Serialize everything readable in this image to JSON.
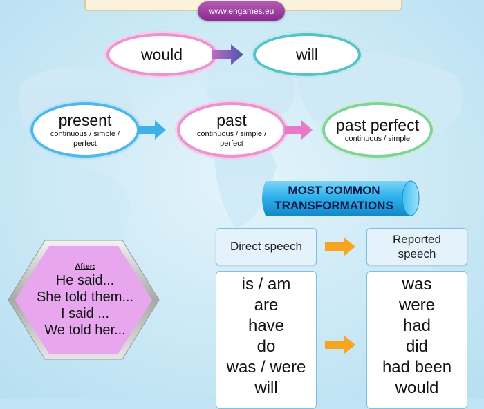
{
  "header": {
    "site": "www.engames.eu"
  },
  "row1": {
    "from": "would",
    "to": "will"
  },
  "row2": {
    "present": {
      "label": "present",
      "sub": "continuous / simple / perfect"
    },
    "past": {
      "label": "past",
      "sub": "continuous / simple / perfect"
    },
    "past_perfect": {
      "label": "past perfect",
      "sub": "continuous / simple"
    }
  },
  "section_title": [
    "MOST COMMON",
    "TRANSFORMATIONS"
  ],
  "columns": {
    "direct": "Direct speech",
    "reported": "Reported speech"
  },
  "transformations": {
    "direct": [
      "is / am",
      "are",
      "have",
      "do",
      "was / were",
      "will"
    ],
    "reported": [
      "was",
      "were",
      "had",
      "did",
      "had been",
      "would"
    ]
  },
  "after_box": {
    "heading": "After:",
    "lines": [
      "He said...",
      "She told them...",
      "I said ...",
      "We told her..."
    ]
  },
  "colors": {
    "pink_border": "#e993d1",
    "blue_border": "#4fb8ea",
    "green_border": "#7fd29c",
    "arrow_orange": "#f7a51e",
    "hexagon_fill": "#e8a6ef"
  }
}
